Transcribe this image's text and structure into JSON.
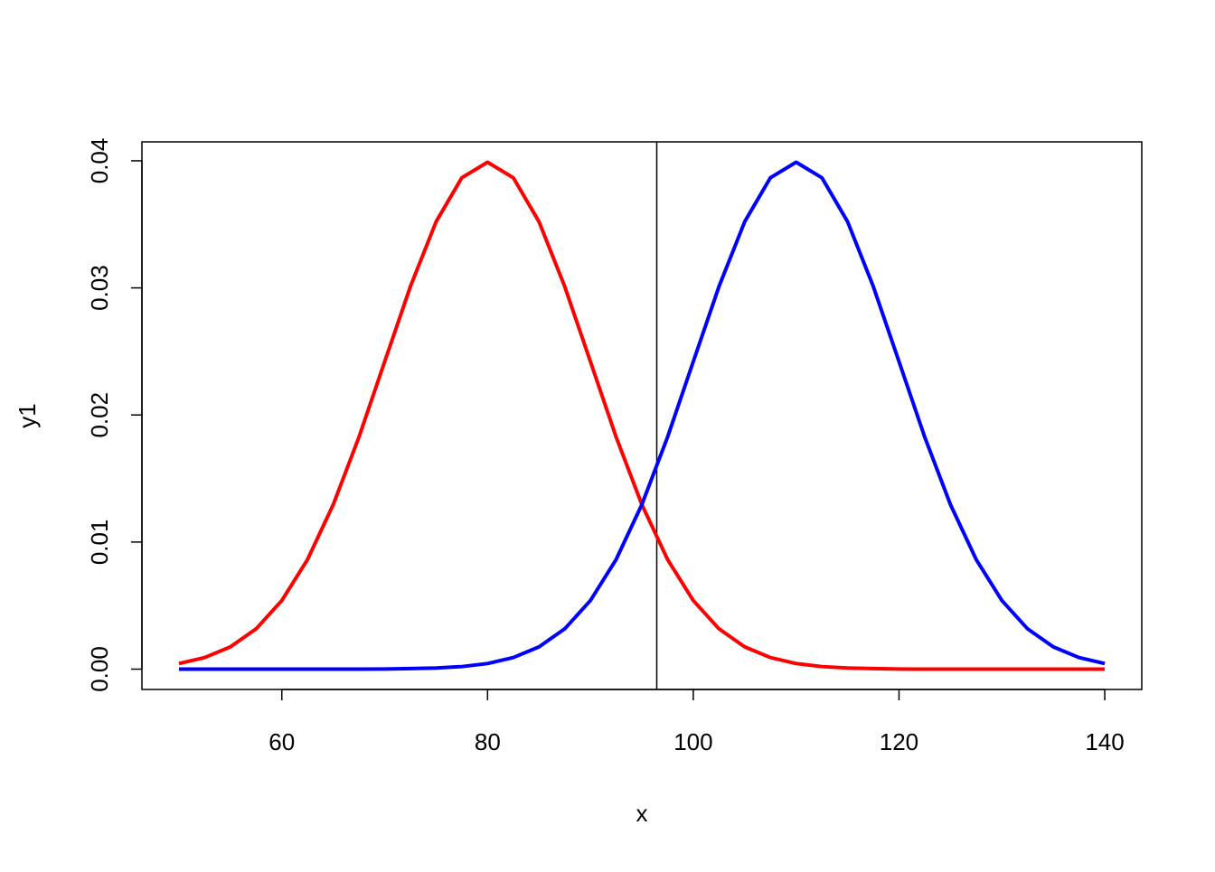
{
  "chart_data": {
    "type": "line",
    "x_label": "x",
    "y_label": "y1",
    "x": [
      50,
      52.5,
      55,
      57.5,
      60,
      62.5,
      65,
      67.5,
      70,
      72.5,
      75,
      77.5,
      80,
      82.5,
      85,
      87.5,
      90,
      92.5,
      95,
      97.5,
      100,
      102.5,
      105,
      107.5,
      110,
      112.5,
      115,
      117.5,
      120,
      122.5,
      125,
      127.5,
      130,
      132.5,
      135,
      137.5,
      140
    ],
    "series": [
      {
        "color": "#ff0000",
        "values": [
          0.00044,
          0.00091,
          0.00175,
          0.00317,
          0.0054,
          0.00863,
          0.01295,
          0.01826,
          0.0242,
          0.03011,
          0.03521,
          0.03867,
          0.03989,
          0.03867,
          0.03521,
          0.03011,
          0.0242,
          0.01826,
          0.01295,
          0.00863,
          0.0054,
          0.00317,
          0.00175,
          0.00091,
          0.00044,
          0.0002,
          9e-05,
          4e-05,
          1e-05,
          0,
          0,
          0,
          0,
          0,
          0,
          0,
          0
        ]
      },
      {
        "color": "#0000ff",
        "values": [
          0,
          0,
          0,
          0,
          0,
          0,
          0,
          0,
          1e-05,
          4e-05,
          9e-05,
          0.0002,
          0.00044,
          0.00091,
          0.00175,
          0.00317,
          0.0054,
          0.00863,
          0.01295,
          0.01826,
          0.0242,
          0.03011,
          0.03521,
          0.03867,
          0.03989,
          0.03867,
          0.03521,
          0.03011,
          0.0242,
          0.01826,
          0.01295,
          0.00863,
          0.0054,
          0.00317,
          0.00175,
          0.00091,
          0.00044
        ]
      }
    ],
    "vline": 96.45,
    "xlim": [
      46.4,
      143.6
    ],
    "xticks": [
      60,
      80,
      100,
      120,
      140
    ],
    "ylim": [
      -0.0016,
      0.04149
    ],
    "yticks": [
      {
        "value": 0,
        "label": "0.00"
      },
      0.01,
      0.02,
      0.03,
      0.04
    ]
  }
}
